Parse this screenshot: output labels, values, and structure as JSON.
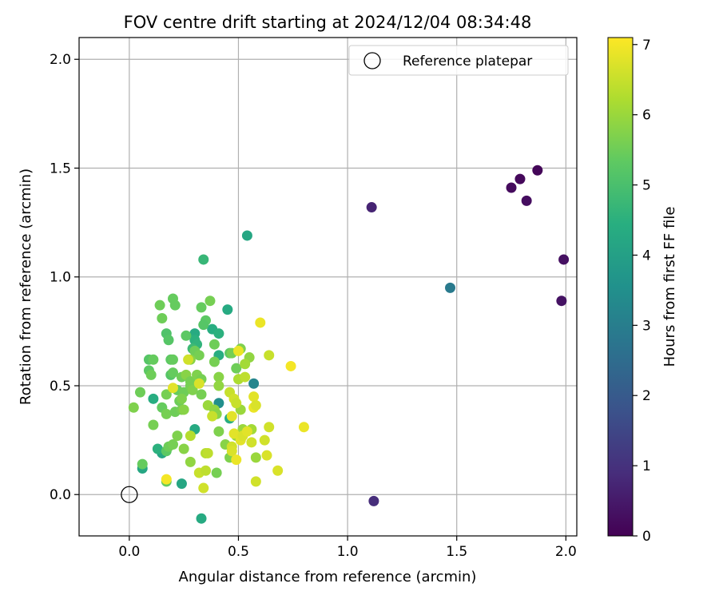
{
  "chart_data": {
    "type": "scatter",
    "title": "FOV centre drift starting at 2024/12/04 08:34:48",
    "xlabel": "Angular distance from reference (arcmin)",
    "ylabel": "Rotation from reference (arcmin)",
    "xlim": [
      -0.23,
      2.05
    ],
    "ylim": [
      -0.19,
      2.1
    ],
    "xticks": [
      "0.0",
      "0.5",
      "1.0",
      "1.5",
      "2.0"
    ],
    "xtick_values": [
      0.0,
      0.5,
      1.0,
      1.5,
      2.0
    ],
    "yticks": [
      "0.0",
      "0.5",
      "1.0",
      "1.5",
      "2.0"
    ],
    "ytick_values": [
      0.0,
      0.5,
      1.0,
      1.5,
      2.0
    ],
    "grid": true,
    "legend": {
      "position": "top-right",
      "label": "Reference platepar"
    },
    "reference_point": {
      "x": 0.0,
      "y": 0.0
    },
    "colorbar": {
      "label": "Hours from first FF file",
      "range": [
        0,
        7.1
      ],
      "ticks": [
        "0",
        "1",
        "2",
        "3",
        "4",
        "5",
        "6",
        "7"
      ],
      "tick_values": [
        0,
        1,
        2,
        3,
        4,
        5,
        6,
        7
      ],
      "colormap": "viridis"
    },
    "points": [
      {
        "x": 1.87,
        "y": 1.49,
        "h": 0.1
      },
      {
        "x": 1.79,
        "y": 1.45,
        "h": 0.15
      },
      {
        "x": 1.75,
        "y": 1.41,
        "h": 0.2
      },
      {
        "x": 1.82,
        "y": 1.35,
        "h": 0.25
      },
      {
        "x": 1.99,
        "y": 1.08,
        "h": 0.3
      },
      {
        "x": 1.98,
        "y": 0.89,
        "h": 0.35
      },
      {
        "x": 1.11,
        "y": 1.32,
        "h": 0.7
      },
      {
        "x": 1.12,
        "y": -0.03,
        "h": 0.9
      },
      {
        "x": 1.47,
        "y": 0.95,
        "h": 2.9
      },
      {
        "x": 0.57,
        "y": 0.51,
        "h": 3.2
      },
      {
        "x": 0.41,
        "y": 0.42,
        "h": 3.5
      },
      {
        "x": 0.54,
        "y": 1.19,
        "h": 4.2
      },
      {
        "x": 0.34,
        "y": 1.08,
        "h": 4.7
      },
      {
        "x": 0.45,
        "y": 0.85,
        "h": 4.3
      },
      {
        "x": 0.38,
        "y": 0.76,
        "h": 4.4
      },
      {
        "x": 0.41,
        "y": 0.74,
        "h": 4.5
      },
      {
        "x": 0.3,
        "y": 0.74,
        "h": 4.3
      },
      {
        "x": 0.3,
        "y": 0.71,
        "h": 4.5
      },
      {
        "x": 0.31,
        "y": 0.69,
        "h": 4.6
      },
      {
        "x": 0.29,
        "y": 0.67,
        "h": 4.8
      },
      {
        "x": 0.41,
        "y": 0.64,
        "h": 4.4
      },
      {
        "x": 0.3,
        "y": 0.3,
        "h": 4.3
      },
      {
        "x": 0.24,
        "y": 0.05,
        "h": 4.2
      },
      {
        "x": 0.33,
        "y": -0.11,
        "h": 4.3
      },
      {
        "x": 0.06,
        "y": 0.12,
        "h": 4.2
      },
      {
        "x": 0.15,
        "y": 0.19,
        "h": 4.2
      },
      {
        "x": 0.13,
        "y": 0.21,
        "h": 4.5
      },
      {
        "x": 0.11,
        "y": 0.44,
        "h": 4.4
      },
      {
        "x": 0.46,
        "y": 0.35,
        "h": 4.4
      },
      {
        "x": 0.2,
        "y": 0.9,
        "h": 5.4
      },
      {
        "x": 0.14,
        "y": 0.87,
        "h": 5.5
      },
      {
        "x": 0.21,
        "y": 0.87,
        "h": 5.4
      },
      {
        "x": 0.33,
        "y": 0.86,
        "h": 5.4
      },
      {
        "x": 0.37,
        "y": 0.89,
        "h": 5.6
      },
      {
        "x": 0.15,
        "y": 0.81,
        "h": 5.5
      },
      {
        "x": 0.35,
        "y": 0.8,
        "h": 5.3
      },
      {
        "x": 0.34,
        "y": 0.78,
        "h": 5.2
      },
      {
        "x": 0.17,
        "y": 0.74,
        "h": 5.1
      },
      {
        "x": 0.18,
        "y": 0.71,
        "h": 5.2
      },
      {
        "x": 0.26,
        "y": 0.73,
        "h": 5.3
      },
      {
        "x": 0.39,
        "y": 0.69,
        "h": 5.5
      },
      {
        "x": 0.46,
        "y": 0.65,
        "h": 5.3
      },
      {
        "x": 0.47,
        "y": 0.65,
        "h": 5.6
      },
      {
        "x": 0.51,
        "y": 0.67,
        "h": 5.7
      },
      {
        "x": 0.3,
        "y": 0.66,
        "h": 5.5
      },
      {
        "x": 0.32,
        "y": 0.64,
        "h": 5.6
      },
      {
        "x": 0.09,
        "y": 0.62,
        "h": 5.2
      },
      {
        "x": 0.11,
        "y": 0.62,
        "h": 5.4
      },
      {
        "x": 0.19,
        "y": 0.62,
        "h": 5.3
      },
      {
        "x": 0.2,
        "y": 0.62,
        "h": 5.4
      },
      {
        "x": 0.28,
        "y": 0.62,
        "h": 5.8
      },
      {
        "x": 0.39,
        "y": 0.61,
        "h": 5.6
      },
      {
        "x": 0.49,
        "y": 0.58,
        "h": 5.5
      },
      {
        "x": 0.55,
        "y": 0.63,
        "h": 5.9
      },
      {
        "x": 0.09,
        "y": 0.57,
        "h": 5.3
      },
      {
        "x": 0.1,
        "y": 0.55,
        "h": 5.5
      },
      {
        "x": 0.19,
        "y": 0.55,
        "h": 5.2
      },
      {
        "x": 0.2,
        "y": 0.56,
        "h": 5.4
      },
      {
        "x": 0.24,
        "y": 0.54,
        "h": 5.5
      },
      {
        "x": 0.26,
        "y": 0.55,
        "h": 5.8
      },
      {
        "x": 0.28,
        "y": 0.52,
        "h": 5.6
      },
      {
        "x": 0.31,
        "y": 0.55,
        "h": 5.7
      },
      {
        "x": 0.33,
        "y": 0.53,
        "h": 5.6
      },
      {
        "x": 0.41,
        "y": 0.54,
        "h": 5.8
      },
      {
        "x": 0.41,
        "y": 0.5,
        "h": 5.9
      },
      {
        "x": 0.05,
        "y": 0.47,
        "h": 5.5
      },
      {
        "x": 0.17,
        "y": 0.46,
        "h": 5.6
      },
      {
        "x": 0.22,
        "y": 0.48,
        "h": 5.4
      },
      {
        "x": 0.25,
        "y": 0.47,
        "h": 5.5
      },
      {
        "x": 0.28,
        "y": 0.5,
        "h": 5.6
      },
      {
        "x": 0.29,
        "y": 0.48,
        "h": 5.7
      },
      {
        "x": 0.23,
        "y": 0.43,
        "h": 5.5
      },
      {
        "x": 0.24,
        "y": 0.44,
        "h": 5.7
      },
      {
        "x": 0.33,
        "y": 0.46,
        "h": 5.6
      },
      {
        "x": 0.02,
        "y": 0.4,
        "h": 5.7
      },
      {
        "x": 0.15,
        "y": 0.4,
        "h": 5.4
      },
      {
        "x": 0.17,
        "y": 0.37,
        "h": 5.6
      },
      {
        "x": 0.21,
        "y": 0.38,
        "h": 5.5
      },
      {
        "x": 0.24,
        "y": 0.39,
        "h": 5.6
      },
      {
        "x": 0.25,
        "y": 0.39,
        "h": 5.8
      },
      {
        "x": 0.36,
        "y": 0.41,
        "h": 6.0
      },
      {
        "x": 0.39,
        "y": 0.39,
        "h": 5.9
      },
      {
        "x": 0.4,
        "y": 0.37,
        "h": 5.8
      },
      {
        "x": 0.41,
        "y": 0.29,
        "h": 5.7
      },
      {
        "x": 0.44,
        "y": 0.23,
        "h": 5.8
      },
      {
        "x": 0.51,
        "y": 0.39,
        "h": 6.0
      },
      {
        "x": 0.11,
        "y": 0.32,
        "h": 5.6
      },
      {
        "x": 0.17,
        "y": 0.2,
        "h": 5.3
      },
      {
        "x": 0.18,
        "y": 0.22,
        "h": 5.5
      },
      {
        "x": 0.2,
        "y": 0.23,
        "h": 5.6
      },
      {
        "x": 0.22,
        "y": 0.27,
        "h": 5.7
      },
      {
        "x": 0.25,
        "y": 0.21,
        "h": 5.8
      },
      {
        "x": 0.06,
        "y": 0.14,
        "h": 5.4
      },
      {
        "x": 0.28,
        "y": 0.15,
        "h": 5.9
      },
      {
        "x": 0.17,
        "y": 0.06,
        "h": 5.4
      },
      {
        "x": 0.4,
        "y": 0.1,
        "h": 5.6
      },
      {
        "x": 0.46,
        "y": 0.17,
        "h": 5.7
      },
      {
        "x": 0.49,
        "y": 0.27,
        "h": 5.9
      },
      {
        "x": 0.52,
        "y": 0.3,
        "h": 6.0
      },
      {
        "x": 0.56,
        "y": 0.3,
        "h": 6.1
      },
      {
        "x": 0.58,
        "y": 0.17,
        "h": 6.0
      },
      {
        "x": 0.53,
        "y": 0.6,
        "h": 6.1
      },
      {
        "x": 0.5,
        "y": 0.53,
        "h": 6.2
      },
      {
        "x": 0.53,
        "y": 0.54,
        "h": 6.4
      },
      {
        "x": 0.28,
        "y": 0.27,
        "h": 6.3
      },
      {
        "x": 0.35,
        "y": 0.19,
        "h": 6.3
      },
      {
        "x": 0.36,
        "y": 0.19,
        "h": 6.4
      },
      {
        "x": 0.32,
        "y": 0.1,
        "h": 6.5
      },
      {
        "x": 0.35,
        "y": 0.11,
        "h": 6.4
      },
      {
        "x": 0.34,
        "y": 0.03,
        "h": 6.6
      },
      {
        "x": 0.38,
        "y": 0.36,
        "h": 6.5
      },
      {
        "x": 0.27,
        "y": 0.62,
        "h": 6.6
      },
      {
        "x": 0.32,
        "y": 0.51,
        "h": 6.7
      },
      {
        "x": 0.2,
        "y": 0.49,
        "h": 6.8
      },
      {
        "x": 0.17,
        "y": 0.07,
        "h": 7.0
      },
      {
        "x": 0.46,
        "y": 0.47,
        "h": 6.5
      },
      {
        "x": 0.48,
        "y": 0.44,
        "h": 6.6
      },
      {
        "x": 0.49,
        "y": 0.42,
        "h": 6.5
      },
      {
        "x": 0.47,
        "y": 0.36,
        "h": 6.8
      },
      {
        "x": 0.47,
        "y": 0.22,
        "h": 6.6
      },
      {
        "x": 0.47,
        "y": 0.2,
        "h": 6.7
      },
      {
        "x": 0.48,
        "y": 0.28,
        "h": 6.8
      },
      {
        "x": 0.49,
        "y": 0.16,
        "h": 6.9
      },
      {
        "x": 0.5,
        "y": 0.66,
        "h": 6.9
      },
      {
        "x": 0.51,
        "y": 0.25,
        "h": 6.8
      },
      {
        "x": 0.52,
        "y": 0.27,
        "h": 6.7
      },
      {
        "x": 0.54,
        "y": 0.29,
        "h": 6.8
      },
      {
        "x": 0.56,
        "y": 0.24,
        "h": 6.6
      },
      {
        "x": 0.57,
        "y": 0.45,
        "h": 6.8
      },
      {
        "x": 0.57,
        "y": 0.4,
        "h": 6.9
      },
      {
        "x": 0.58,
        "y": 0.41,
        "h": 6.7
      },
      {
        "x": 0.58,
        "y": 0.06,
        "h": 6.6
      },
      {
        "x": 0.6,
        "y": 0.79,
        "h": 6.9
      },
      {
        "x": 0.62,
        "y": 0.25,
        "h": 6.6
      },
      {
        "x": 0.63,
        "y": 0.18,
        "h": 6.7
      },
      {
        "x": 0.64,
        "y": 0.64,
        "h": 6.5
      },
      {
        "x": 0.64,
        "y": 0.31,
        "h": 6.6
      },
      {
        "x": 0.68,
        "y": 0.11,
        "h": 6.7
      },
      {
        "x": 0.74,
        "y": 0.59,
        "h": 7.0
      },
      {
        "x": 0.8,
        "y": 0.31,
        "h": 6.9
      }
    ]
  }
}
